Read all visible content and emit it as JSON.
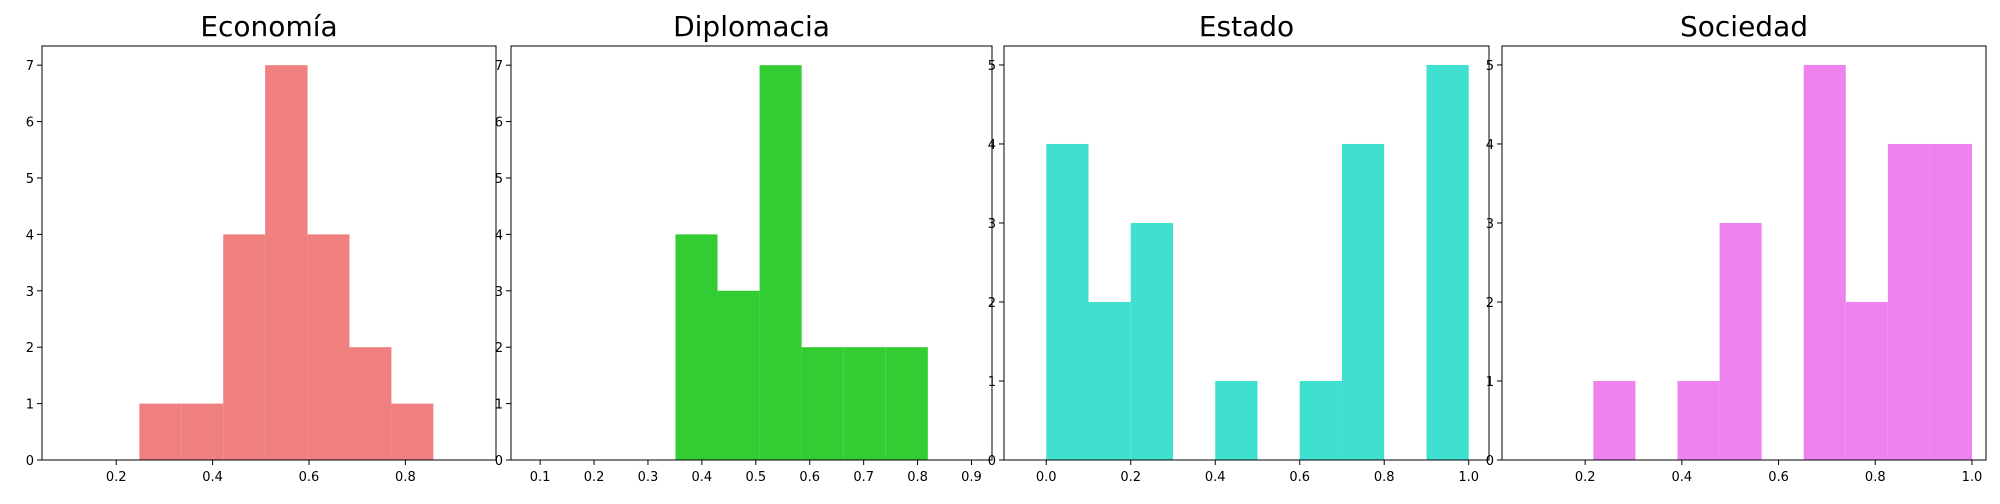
{
  "chart_data": [
    {
      "type": "histogram",
      "title": "Economía",
      "color": "#f08080",
      "bins": [
        0.248,
        0.335,
        0.422,
        0.509,
        0.597,
        0.684,
        0.771,
        0.858
      ],
      "values": [
        1,
        1,
        4,
        7,
        4,
        2,
        1
      ],
      "xlim": [
        0.046,
        0.988
      ],
      "ylim": [
        0,
        7.34
      ],
      "xticks": [
        0.2,
        0.4,
        0.6,
        0.8
      ],
      "yticks": [
        0,
        1,
        2,
        3,
        4,
        5,
        6,
        7
      ]
    },
    {
      "type": "histogram",
      "title": "Diplomacia",
      "color": "#32cd32",
      "bins": [
        0.351,
        0.429,
        0.507,
        0.585,
        0.663,
        0.741,
        0.819
      ],
      "values": [
        4,
        3,
        7,
        2,
        2,
        2
      ],
      "xlim": [
        0.046,
        0.938
      ],
      "ylim": [
        0,
        7.34
      ],
      "xticks": [
        0.1,
        0.2,
        0.3,
        0.4,
        0.5,
        0.6,
        0.7,
        0.8,
        0.9
      ],
      "yticks": [
        0,
        1,
        2,
        3,
        4,
        5,
        6,
        7
      ]
    },
    {
      "type": "histogram",
      "title": "Estado",
      "color": "#40e0d0",
      "bins": [
        0,
        0.1,
        0.2,
        0.3,
        0.4,
        0.5,
        0.6,
        0.7,
        0.8,
        0.9,
        1
      ],
      "values": [
        4,
        2,
        3,
        0,
        1,
        0,
        1,
        4,
        0,
        5
      ],
      "xlim": [
        -0.1,
        1.048
      ],
      "ylim": [
        0,
        5.24
      ],
      "xticks": [
        {
          "value": 0,
          "label": "0.0"
        },
        0.2,
        0.4,
        0.6,
        0.8,
        {
          "value": 1,
          "label": "1.0"
        }
      ],
      "yticks": [
        0,
        1,
        2,
        3,
        4,
        5
      ]
    },
    {
      "type": "histogram",
      "title": "Sociedad",
      "color": "#ee82ee",
      "bins": [
        0.217,
        0.304,
        0.391,
        0.478,
        0.565,
        0.652,
        0.739,
        0.826,
        0.913,
        1.0
      ],
      "values": [
        1,
        0,
        1,
        3,
        0,
        5,
        2,
        4,
        4
      ],
      "xlim": [
        0.028,
        1.029
      ],
      "ylim": [
        0,
        5.24
      ],
      "xticks": [
        0.2,
        0.4,
        0.6,
        0.8,
        {
          "value": 1,
          "label": "1.0"
        }
      ],
      "yticks": [
        0,
        1,
        2,
        3,
        4,
        5
      ]
    }
  ]
}
